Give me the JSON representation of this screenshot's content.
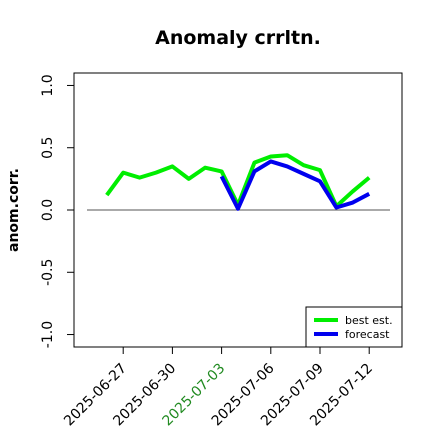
{
  "chart_data": {
    "type": "line",
    "title": "Anomaly crrltn.",
    "y_label": "anom.corr.",
    "x": [
      "2025-06-26",
      "2025-06-27",
      "2025-06-28",
      "2025-06-29",
      "2025-06-30",
      "2025-07-01",
      "2025-07-02",
      "2025-07-03",
      "2025-07-04",
      "2025-07-05",
      "2025-07-06",
      "2025-07-07",
      "2025-07-08",
      "2025-07-09",
      "2025-07-10",
      "2025-07-11",
      "2025-07-12"
    ],
    "series": [
      {
        "name": "best est.",
        "color": "#00ee00",
        "values": [
          0.12,
          0.3,
          0.26,
          0.3,
          0.35,
          0.25,
          0.34,
          0.31,
          0.04,
          0.38,
          0.43,
          0.44,
          0.36,
          0.32,
          0.03,
          0.15,
          0.26
        ]
      },
      {
        "name": "forecast",
        "color": "#0000ee",
        "values": [
          null,
          null,
          null,
          null,
          null,
          null,
          null,
          0.27,
          0.01,
          0.31,
          0.39,
          0.35,
          0.29,
          0.23,
          0.02,
          0.06,
          0.13
        ]
      }
    ],
    "xlim": [
      "2025-06-24",
      "2025-07-14"
    ],
    "xticks": [
      "2025-06-27",
      "2025-06-30",
      "2025-07-03",
      "2025-07-06",
      "2025-07-09",
      "2025-07-12"
    ],
    "highlight_date": "2025-07-03",
    "highlight_color": "#228b22",
    "ylim": [
      -1.1,
      1.1
    ],
    "yticks": [
      {
        "value": -1,
        "label": "-1.0"
      },
      -0.5,
      {
        "value": 0,
        "label": "0.0"
      },
      0.5,
      {
        "value": 1,
        "label": "1.0"
      }
    ],
    "hline": 0,
    "legend": "lower right"
  }
}
